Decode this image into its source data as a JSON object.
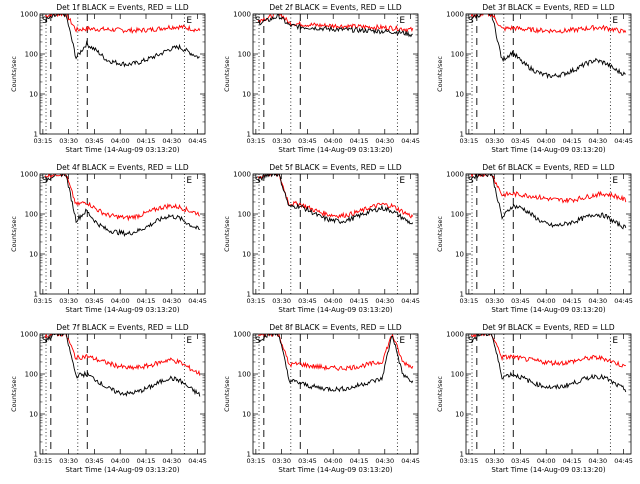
{
  "figure": {
    "xlabel": "Start Time (14-Aug-09 03:13:20)",
    "ylabel": "Counts/sec"
  },
  "chart_data": [
    {
      "type": "line",
      "title": "Det 1f BLACK = Events, RED = LLD",
      "x_ticks": [
        "03:15",
        "03:30",
        "03:45",
        "04:00",
        "04:15",
        "04:30",
        "04:45"
      ],
      "y_ticks": [
        "1",
        "10",
        "100",
        "1000"
      ],
      "ylim": [
        1,
        1000
      ],
      "ylog": true,
      "markers": [
        "S",
        "E"
      ],
      "series": [
        {
          "name": "Events",
          "color": "#000000",
          "values": [
            700,
            900,
            1000,
            80,
            180,
            120,
            70,
            60,
            55,
            60,
            75,
            95,
            130,
            150,
            110,
            80
          ]
        },
        {
          "name": "LLD",
          "color": "#ff0000",
          "values": [
            900,
            1000,
            1000,
            400,
            430,
            420,
            410,
            400,
            390,
            390,
            400,
            430,
            470,
            480,
            440,
            380
          ]
        }
      ]
    },
    {
      "type": "line",
      "title": "Det 2f BLACK = Events, RED = LLD",
      "x_ticks": [
        "03:15",
        "03:30",
        "03:45",
        "04:00",
        "04:15",
        "04:30",
        "04:45"
      ],
      "y_ticks": [
        "1",
        "10",
        "100",
        "1000"
      ],
      "ylim": [
        1,
        1000
      ],
      "ylog": true,
      "markers": [
        "S",
        "E"
      ],
      "series": [
        {
          "name": "Events",
          "color": "#000000",
          "values": [
            600,
            700,
            900,
            520,
            480,
            460,
            440,
            420,
            410,
            400,
            390,
            380,
            370,
            360,
            340,
            300
          ]
        },
        {
          "name": "LLD",
          "color": "#ff0000",
          "values": [
            700,
            800,
            1100,
            600,
            560,
            540,
            520,
            510,
            500,
            490,
            480,
            470,
            460,
            450,
            430,
            400
          ]
        }
      ]
    },
    {
      "type": "line",
      "title": "Det 3f BLACK = Events, RED = LLD",
      "x_ticks": [
        "03:15",
        "03:30",
        "03:45",
        "04:00",
        "04:15",
        "04:30",
        "04:45"
      ],
      "y_ticks": [
        "1",
        "10",
        "100",
        "1000"
      ],
      "ylim": [
        1,
        1000
      ],
      "ylog": true,
      "markers": [
        "S",
        "E"
      ],
      "series": [
        {
          "name": "Events",
          "color": "#000000",
          "values": [
            800,
            1000,
            1000,
            70,
            110,
            60,
            40,
            30,
            28,
            32,
            40,
            55,
            70,
            60,
            40,
            30
          ]
        },
        {
          "name": "LLD",
          "color": "#ff0000",
          "values": [
            900,
            1000,
            1000,
            420,
            450,
            420,
            400,
            390,
            380,
            380,
            400,
            430,
            460,
            450,
            400,
            350
          ]
        }
      ]
    },
    {
      "type": "line",
      "title": "Det 4f BLACK = Events, RED = LLD",
      "x_ticks": [
        "03:15",
        "03:30",
        "03:45",
        "04:00",
        "04:15",
        "04:30",
        "04:45"
      ],
      "y_ticks": [
        "1",
        "10",
        "100",
        "1000"
      ],
      "ylim": [
        1,
        1000
      ],
      "ylog": true,
      "markers": [
        "S",
        "E"
      ],
      "series": [
        {
          "name": "Events",
          "color": "#000000",
          "values": [
            700,
            1000,
            1000,
            70,
            120,
            60,
            40,
            35,
            32,
            38,
            50,
            70,
            90,
            80,
            55,
            40
          ]
        },
        {
          "name": "LLD",
          "color": "#ff0000",
          "values": [
            900,
            1000,
            1000,
            170,
            200,
            130,
            95,
            85,
            80,
            90,
            110,
            140,
            160,
            150,
            120,
            100
          ]
        }
      ]
    },
    {
      "type": "line",
      "title": "Det 5f BLACK = Events, RED = LLD",
      "x_ticks": [
        "03:15",
        "03:30",
        "03:45",
        "04:00",
        "04:15",
        "04:30",
        "04:45"
      ],
      "y_ticks": [
        "1",
        "10",
        "100",
        "1000"
      ],
      "ylim": [
        1,
        1000
      ],
      "ylog": true,
      "markers": [
        "S",
        "E"
      ],
      "series": [
        {
          "name": "Events",
          "color": "#000000",
          "values": [
            700,
            1000,
            1000,
            150,
            160,
            120,
            85,
            70,
            65,
            75,
            95,
            120,
            140,
            120,
            80,
            55
          ]
        },
        {
          "name": "LLD",
          "color": "#ff0000",
          "values": [
            800,
            1000,
            1000,
            180,
            180,
            140,
            110,
            95,
            90,
            100,
            120,
            150,
            175,
            160,
            115,
            85
          ]
        }
      ]
    },
    {
      "type": "line",
      "title": "Det 6f BLACK = Events, RED = LLD",
      "x_ticks": [
        "03:15",
        "03:30",
        "03:45",
        "04:00",
        "04:15",
        "04:30",
        "04:45"
      ],
      "y_ticks": [
        "1",
        "10",
        "100",
        "1000"
      ],
      "ylim": [
        1,
        1000
      ],
      "ylog": true,
      "markers": [
        "S",
        "E"
      ],
      "series": [
        {
          "name": "Events",
          "color": "#000000",
          "values": [
            800,
            1000,
            1000,
            80,
            160,
            140,
            90,
            60,
            50,
            55,
            65,
            80,
            100,
            90,
            60,
            45
          ]
        },
        {
          "name": "LLD",
          "color": "#ff0000",
          "values": [
            900,
            1000,
            1000,
            300,
            320,
            300,
            280,
            250,
            230,
            220,
            230,
            260,
            300,
            320,
            280,
            220
          ]
        }
      ]
    },
    {
      "type": "line",
      "title": "Det 7f BLACK = Events, RED = LLD",
      "x_ticks": [
        "03:15",
        "03:30",
        "03:45",
        "04:00",
        "04:15",
        "04:30",
        "04:45"
      ],
      "y_ticks": [
        "1",
        "10",
        "100",
        "1000"
      ],
      "ylim": [
        1,
        1000
      ],
      "ylog": true,
      "markers": [
        "S",
        "E"
      ],
      "series": [
        {
          "name": "Events",
          "color": "#000000",
          "values": [
            700,
            1000,
            1000,
            90,
            100,
            70,
            45,
            35,
            32,
            36,
            45,
            60,
            80,
            70,
            45,
            30
          ]
        },
        {
          "name": "LLD",
          "color": "#ff0000",
          "values": [
            900,
            1000,
            1000,
            250,
            280,
            230,
            190,
            160,
            140,
            145,
            160,
            190,
            230,
            200,
            140,
            100
          ]
        }
      ]
    },
    {
      "type": "line",
      "title": "Det 8f BLACK = Events, RED = LLD",
      "x_ticks": [
        "03:15",
        "03:30",
        "03:45",
        "04:00",
        "04:15",
        "04:30",
        "04:45"
      ],
      "y_ticks": [
        "1",
        "10",
        "100",
        "1000"
      ],
      "ylim": [
        1,
        1000
      ],
      "ylog": true,
      "markers": [
        "S",
        "E"
      ],
      "series": [
        {
          "name": "Events",
          "color": "#000000",
          "values": [
            700,
            1000,
            1000,
            70,
            60,
            50,
            45,
            42,
            42,
            45,
            55,
            65,
            75,
            1000,
            100,
            60
          ]
        },
        {
          "name": "LLD",
          "color": "#ff0000",
          "values": [
            900,
            1000,
            1000,
            170,
            180,
            160,
            150,
            140,
            140,
            145,
            160,
            180,
            200,
            1000,
            200,
            150
          ]
        }
      ]
    },
    {
      "type": "line",
      "title": "Det 9f BLACK = Events, RED = LLD",
      "x_ticks": [
        "03:15",
        "03:30",
        "03:45",
        "04:00",
        "04:15",
        "04:30",
        "04:45"
      ],
      "y_ticks": [
        "1",
        "10",
        "100",
        "1000"
      ],
      "ylim": [
        1,
        1000
      ],
      "ylog": true,
      "markers": [
        "S",
        "E"
      ],
      "series": [
        {
          "name": "Events",
          "color": "#000000",
          "values": [
            700,
            1000,
            1000,
            85,
            100,
            80,
            60,
            50,
            45,
            50,
            60,
            75,
            90,
            80,
            55,
            40
          ]
        },
        {
          "name": "LLD",
          "color": "#ff0000",
          "values": [
            900,
            1000,
            1000,
            260,
            270,
            240,
            220,
            200,
            190,
            190,
            210,
            240,
            260,
            240,
            190,
            150
          ]
        }
      ]
    }
  ]
}
